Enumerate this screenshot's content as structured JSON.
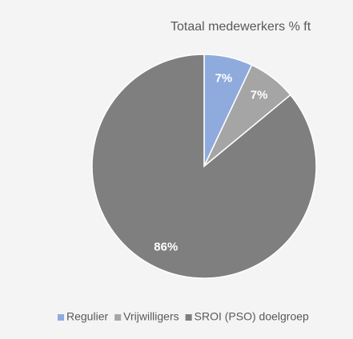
{
  "chart_data": {
    "type": "pie",
    "title": "Totaal medewerkers % ft",
    "categories": [
      "Regulier",
      "Vrijwilligers",
      "SROI (PSO) doelgroep"
    ],
    "values": [
      7,
      7,
      86
    ],
    "value_labels": [
      "7%",
      "7%",
      "86%"
    ],
    "colors": [
      "#8fabdd",
      "#a5a5a5",
      "#7f7f7f"
    ],
    "legend": "bottom"
  }
}
